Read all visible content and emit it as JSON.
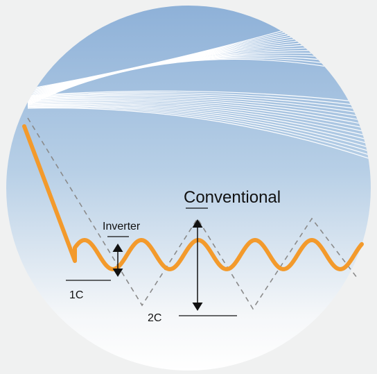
{
  "labels": {
    "conventional": "Conventional",
    "inverter": "Inverter",
    "one_c": "1C",
    "two_c": "2C"
  }
}
